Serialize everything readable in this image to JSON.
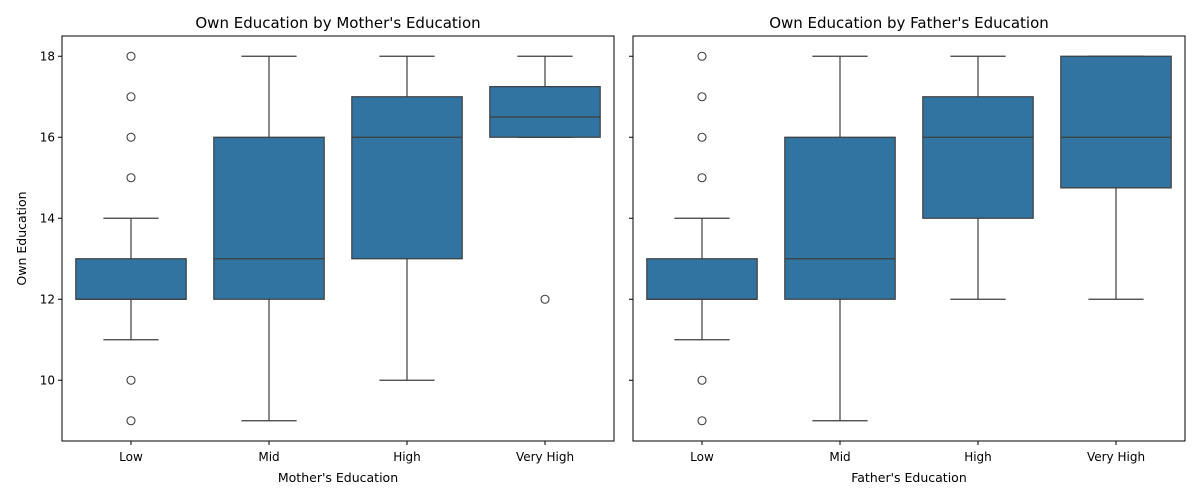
{
  "chart_data": [
    {
      "type": "box",
      "title": "Own Education by Mother's Education",
      "xlabel": "Mother's Education",
      "ylabel": "Own Education",
      "categories": [
        "Low",
        "Mid",
        "High",
        "Very High"
      ],
      "ylim": [
        8.5,
        18.5
      ],
      "yticks": [
        10,
        12,
        14,
        16,
        18
      ],
      "box_color": "#3274a1",
      "boxes": [
        {
          "category": "Low",
          "whisker_low": 11,
          "q1": 12,
          "median": 12,
          "q3": 13,
          "whisker_high": 14,
          "outliers": [
            9,
            10,
            15,
            16,
            17,
            18
          ]
        },
        {
          "category": "Mid",
          "whisker_low": 9,
          "q1": 12,
          "median": 13,
          "q3": 16,
          "whisker_high": 18,
          "outliers": []
        },
        {
          "category": "High",
          "whisker_low": 10,
          "q1": 13,
          "median": 16,
          "q3": 17,
          "whisker_high": 18,
          "outliers": []
        },
        {
          "category": "Very High",
          "whisker_low": 16,
          "q1": 16,
          "median": 16.5,
          "q3": 17.25,
          "whisker_high": 18,
          "outliers": [
            12
          ]
        }
      ]
    },
    {
      "type": "box",
      "title": "Own Education by Father's Education",
      "xlabel": "Father's Education",
      "ylabel": "",
      "categories": [
        "Low",
        "Mid",
        "High",
        "Very High"
      ],
      "ylim": [
        8.5,
        18.5
      ],
      "yticks": [
        10,
        12,
        14,
        16,
        18
      ],
      "box_color": "#3274a1",
      "boxes": [
        {
          "category": "Low",
          "whisker_low": 11,
          "q1": 12,
          "median": 12,
          "q3": 13,
          "whisker_high": 14,
          "outliers": [
            9,
            10,
            15,
            16,
            17,
            18
          ]
        },
        {
          "category": "Mid",
          "whisker_low": 9,
          "q1": 12,
          "median": 13,
          "q3": 16,
          "whisker_high": 18,
          "outliers": []
        },
        {
          "category": "High",
          "whisker_low": 12,
          "q1": 14,
          "median": 16,
          "q3": 17,
          "whisker_high": 18,
          "outliers": []
        },
        {
          "category": "Very High",
          "whisker_low": 12,
          "q1": 14.75,
          "median": 16,
          "q3": 18,
          "whisker_high": 18,
          "outliers": []
        }
      ]
    }
  ]
}
